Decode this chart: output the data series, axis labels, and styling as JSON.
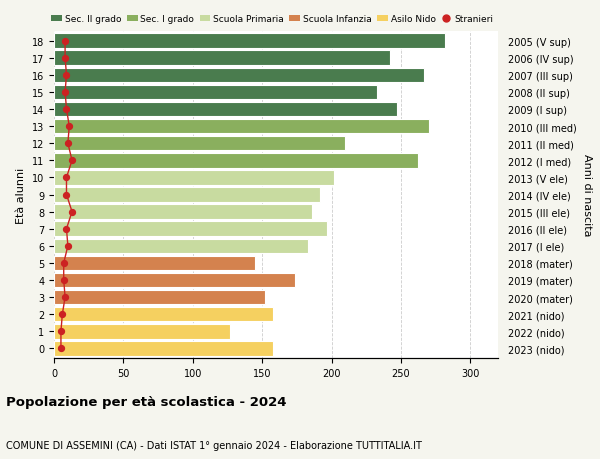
{
  "ages": [
    0,
    1,
    2,
    3,
    4,
    5,
    6,
    7,
    8,
    9,
    10,
    11,
    12,
    13,
    14,
    15,
    16,
    17,
    18
  ],
  "values": [
    158,
    127,
    158,
    152,
    174,
    145,
    183,
    197,
    186,
    192,
    202,
    262,
    210,
    270,
    247,
    233,
    267,
    242,
    282
  ],
  "stranieri": [
    5,
    5,
    6,
    8,
    7,
    7,
    10,
    9,
    13,
    9,
    9,
    13,
    10,
    11,
    9,
    8,
    9,
    8,
    8
  ],
  "right_labels": [
    "2023 (nido)",
    "2022 (nido)",
    "2021 (nido)",
    "2020 (mater)",
    "2019 (mater)",
    "2018 (mater)",
    "2017 (I ele)",
    "2016 (II ele)",
    "2015 (III ele)",
    "2014 (IV ele)",
    "2013 (V ele)",
    "2012 (I med)",
    "2011 (II med)",
    "2010 (III med)",
    "2009 (I sup)",
    "2008 (II sup)",
    "2007 (III sup)",
    "2006 (IV sup)",
    "2005 (V sup)"
  ],
  "bar_colors": [
    "#f5d060",
    "#f5d060",
    "#f5d060",
    "#d4824e",
    "#d4824e",
    "#d4824e",
    "#c8dba0",
    "#c8dba0",
    "#c8dba0",
    "#c8dba0",
    "#c8dba0",
    "#8aaf5e",
    "#8aaf5e",
    "#8aaf5e",
    "#4a7c4e",
    "#4a7c4e",
    "#4a7c4e",
    "#4a7c4e",
    "#4a7c4e"
  ],
  "legend_labels": [
    "Sec. II grado",
    "Sec. I grado",
    "Scuola Primaria",
    "Scuola Infanzia",
    "Asilo Nido",
    "Stranieri"
  ],
  "legend_colors": [
    "#4a7c4e",
    "#8aaf5e",
    "#c8dba0",
    "#d4824e",
    "#f5d060",
    "#cc2222"
  ],
  "title1": "Popolazione per età scolastica - 2024",
  "title2": "COMUNE DI ASSEMINI (CA) - Dati ISTAT 1° gennaio 2024 - Elaborazione TUTTITALIA.IT",
  "ylabel_left": "Età alunni",
  "ylabel_right": "Anni di nascita",
  "xlim": [
    0,
    320
  ],
  "xticks": [
    0,
    50,
    100,
    150,
    200,
    250,
    300
  ],
  "background_color": "#f5f5ee",
  "plot_bg": "#ffffff",
  "stranieri_color": "#cc2222"
}
